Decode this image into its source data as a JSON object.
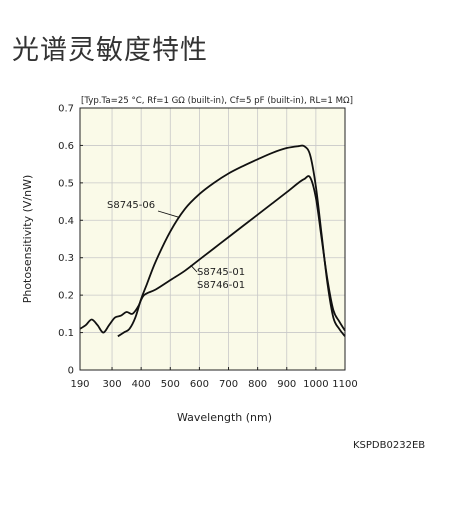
{
  "page": {
    "heading": "光谱灵敏度特性",
    "doc_code": "KSPDB0232EB"
  },
  "colors": {
    "plot_background": "#fafae8",
    "grid": "#c8c8c8",
    "curve": "#111111"
  },
  "chart_data": {
    "type": "line",
    "annotation": "[Typ.Ta=25 °C, Rf=1 GΩ (built-in), Cf=5 pF (built-in), RL=1 MΩ]",
    "xlabel": "Wavelength (nm)",
    "ylabel": "Photosensitivity (V/nW)",
    "xlim": [
      190,
      1100
    ],
    "ylim": [
      0,
      0.7
    ],
    "x_ticks": [
      190,
      300,
      400,
      500,
      600,
      700,
      800,
      900,
      1000,
      1100
    ],
    "x_tick_labels": [
      "190",
      "300",
      "400",
      "500",
      "600",
      "700",
      "800",
      "900",
      "1000",
      "1100"
    ],
    "y_ticks": [
      0,
      0.1,
      0.2,
      0.3,
      0.4,
      0.5,
      0.6,
      0.7
    ],
    "y_tick_labels": [
      "0",
      "0.1",
      "0.2",
      "0.3",
      "0.4",
      "0.5",
      "0.6",
      "0.7"
    ],
    "grid": true,
    "series": [
      {
        "name": "S8745-06",
        "label_lines": [
          "S8745-06"
        ],
        "x": [
          320,
          340,
          360,
          380,
          400,
          420,
          450,
          500,
          550,
          600,
          650,
          700,
          750,
          800,
          850,
          900,
          940,
          960,
          980,
          1000,
          1020,
          1040,
          1060,
          1080,
          1100
        ],
        "y": [
          0.09,
          0.1,
          0.11,
          0.14,
          0.19,
          0.23,
          0.29,
          0.37,
          0.43,
          0.47,
          0.5,
          0.525,
          0.545,
          0.563,
          0.58,
          0.593,
          0.598,
          0.598,
          0.575,
          0.49,
          0.36,
          0.23,
          0.14,
          0.11,
          0.09
        ]
      },
      {
        "name": "S8745-01 S8746-01",
        "label_lines": [
          "S8745-01",
          "S8746-01"
        ],
        "x": [
          190,
          210,
          230,
          250,
          270,
          290,
          310,
          330,
          350,
          370,
          390,
          410,
          450,
          500,
          550,
          600,
          650,
          700,
          750,
          800,
          850,
          900,
          940,
          960,
          980,
          1000,
          1020,
          1040,
          1060,
          1080,
          1100
        ],
        "y": [
          0.11,
          0.12,
          0.135,
          0.12,
          0.1,
          0.12,
          0.14,
          0.145,
          0.155,
          0.15,
          0.17,
          0.2,
          0.215,
          0.24,
          0.265,
          0.295,
          0.325,
          0.355,
          0.385,
          0.415,
          0.445,
          0.475,
          0.5,
          0.51,
          0.515,
          0.46,
          0.35,
          0.24,
          0.16,
          0.13,
          0.105
        ]
      }
    ]
  }
}
